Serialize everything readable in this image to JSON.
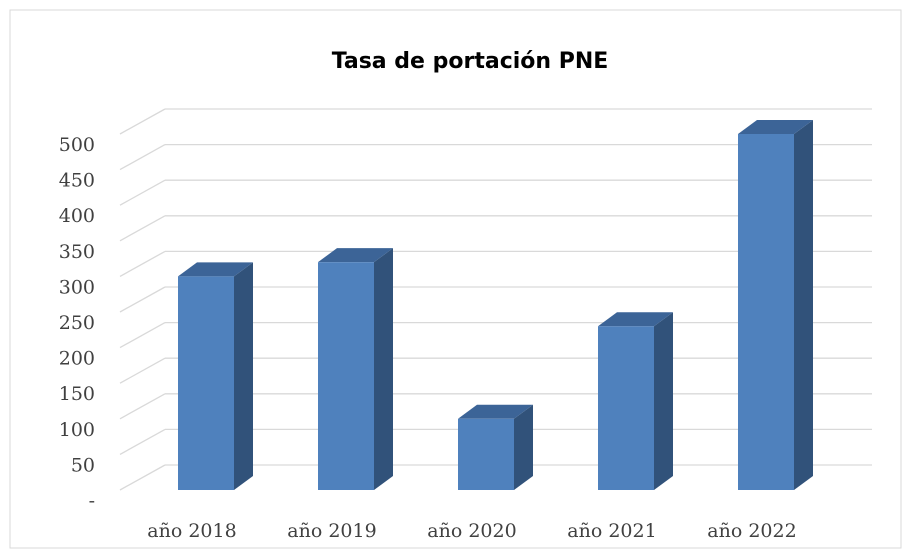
{
  "chart_data": {
    "type": "bar3d",
    "title": "Tasa de portación  PNE",
    "categories": [
      "año 2018",
      "año 2019",
      "año 2020",
      "año 2021",
      "año 2022"
    ],
    "values": [
      300,
      320,
      100,
      230,
      500
    ],
    "color": "#4f81bd",
    "ylim": [
      0,
      500
    ],
    "yticks": [
      {
        "value": 0,
        "label": "-"
      },
      50,
      100,
      150,
      200,
      250,
      300,
      350,
      400,
      450,
      500
    ],
    "grid": true
  }
}
